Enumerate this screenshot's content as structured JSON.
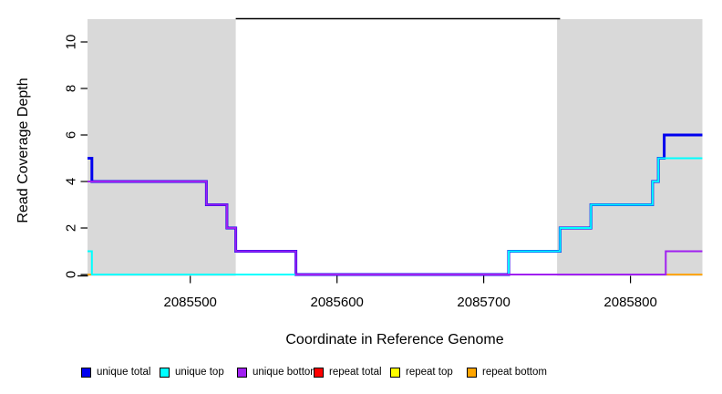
{
  "chart_data": {
    "type": "line",
    "subtype": "step-coverage",
    "title": "",
    "xlabel": "Coordinate in Reference Genome",
    "ylabel": "Read Coverage Depth",
    "xlim": [
      2085430,
      2085849
    ],
    "ylim": [
      0,
      11
    ],
    "x_ticks": [
      2085500,
      2085600,
      2085700,
      2085800
    ],
    "y_ticks": [
      0,
      2,
      4,
      6,
      8,
      10
    ],
    "grid": false,
    "legend_position": "bottom",
    "background_color": "#ffffff",
    "shaded_region_color": "#d9d9d9",
    "shaded_regions": [
      {
        "name": "repeat-region-left",
        "x0": 2085430,
        "x1": 2085531
      },
      {
        "name": "repeat-region-right",
        "x0": 2085750,
        "x1": 2085849
      }
    ],
    "top_segment": {
      "x0": 2085531,
      "x1": 2085752,
      "y": 11,
      "color": "#000000"
    },
    "series": [
      {
        "name": "repeat total",
        "color": "#ff0000",
        "width": 1.5,
        "steps": [
          [
            2085430,
            0
          ],
          [
            2085849,
            0
          ]
        ]
      },
      {
        "name": "repeat top",
        "color": "#ffff00",
        "width": 1.5,
        "steps": [
          [
            2085430,
            0
          ],
          [
            2085849,
            0
          ]
        ]
      },
      {
        "name": "repeat bottom",
        "color": "#ffa500",
        "width": 2,
        "steps": [
          [
            2085430,
            0
          ],
          [
            2085849,
            0
          ]
        ]
      },
      {
        "name": "unique total",
        "color": "#0000ee",
        "width": 3,
        "steps": [
          [
            2085430,
            5
          ],
          [
            2085433,
            4
          ],
          [
            2085511,
            3
          ],
          [
            2085525,
            2
          ],
          [
            2085531,
            1
          ],
          [
            2085572,
            0
          ],
          [
            2085717,
            1
          ],
          [
            2085752,
            2
          ],
          [
            2085773,
            3
          ],
          [
            2085815,
            4
          ],
          [
            2085819,
            5
          ],
          [
            2085823,
            6
          ],
          [
            2085849,
            6
          ]
        ]
      },
      {
        "name": "unique top",
        "color": "#00ffff",
        "width": 2,
        "steps": [
          [
            2085430,
            1
          ],
          [
            2085433,
            0
          ],
          [
            2085717,
            1
          ],
          [
            2085752,
            2
          ],
          [
            2085773,
            3
          ],
          [
            2085815,
            4
          ],
          [
            2085819,
            5
          ],
          [
            2085849,
            5
          ]
        ]
      },
      {
        "name": "unique bottom",
        "color": "#a020f0",
        "width": 2,
        "steps": [
          [
            2085430,
            4
          ],
          [
            2085511,
            3
          ],
          [
            2085525,
            2
          ],
          [
            2085531,
            1
          ],
          [
            2085572,
            0
          ],
          [
            2085824,
            1
          ],
          [
            2085849,
            1
          ]
        ]
      }
    ],
    "legend": [
      {
        "label": "unique total",
        "color": "#0000ee"
      },
      {
        "label": "unique top",
        "color": "#00ffff"
      },
      {
        "label": "unique bottom",
        "color": "#a020f0"
      },
      {
        "label": "repeat total",
        "color": "#ff0000"
      },
      {
        "label": "repeat top",
        "color": "#ffff00"
      },
      {
        "label": "repeat bottom",
        "color": "#ffa500"
      }
    ]
  }
}
